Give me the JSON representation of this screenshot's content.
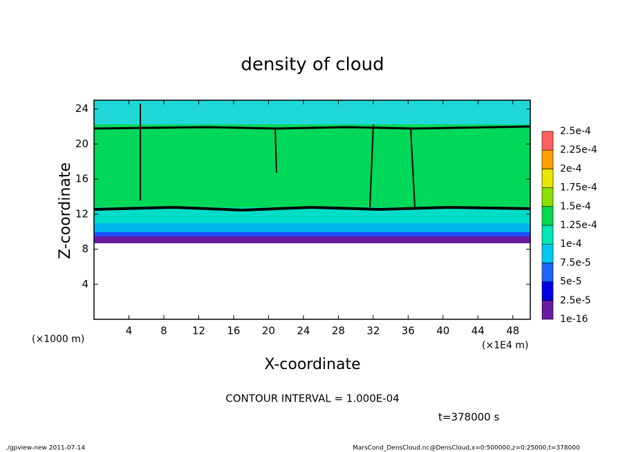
{
  "chart_data": {
    "type": "contour",
    "title": "density of cloud",
    "xlabel": "X-coordinate",
    "ylabel": "Z-coordinate",
    "x_unit_note": "(×1000 m)",
    "x_scale_note": "(×1E4 m)",
    "contour_note": "CONTOUR INTERVAL = 1.000E-04",
    "time_note": "t=378000 s",
    "footer_left": "./gpview-new  2011-07-14",
    "footer_right": "MarsCond_DensCloud.nc@DensCloud,x=0:500000,z=0:25000,t=378000",
    "xlim": [
      0,
      50
    ],
    "xticks": [
      4,
      8,
      12,
      16,
      20,
      24,
      28,
      32,
      36,
      40,
      44,
      48
    ],
    "ylim": [
      0,
      25
    ],
    "yticks": [
      4,
      8,
      12,
      16,
      20,
      24
    ],
    "colorbar": {
      "ticks": [
        {
          "value": 1e-16,
          "label": "1e-16"
        },
        {
          "value": 2.5e-05,
          "label": "2.5e-5"
        },
        {
          "value": 5e-05,
          "label": "5e-5"
        },
        {
          "value": 7.5e-05,
          "label": "7.5e-5"
        },
        {
          "value": 0.0001,
          "label": "1e-4"
        },
        {
          "value": 0.000125,
          "label": "1.25e-4"
        },
        {
          "value": 0.00015,
          "label": "1.5e-4"
        },
        {
          "value": 0.000175,
          "label": "1.75e-4"
        },
        {
          "value": 0.0002,
          "label": "2e-4"
        },
        {
          "value": 0.000225,
          "label": "2.25e-4"
        },
        {
          "value": 0.00025,
          "label": "2.5e-4"
        }
      ],
      "colors": [
        "#6a1aa0",
        "#0000e6",
        "#1e64ff",
        "#00c8f0",
        "#00e6b4",
        "#00d84c",
        "#8ce000",
        "#e6e600",
        "#ffa000",
        "#ff6060"
      ]
    }
  }
}
